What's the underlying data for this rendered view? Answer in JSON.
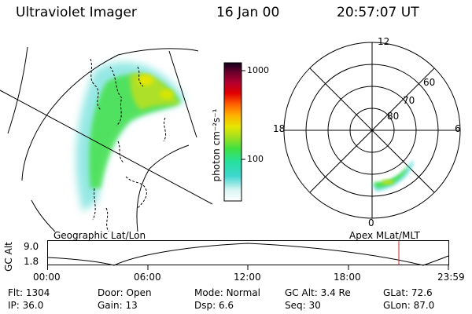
{
  "header": {
    "instrument": "Ultraviolet Imager",
    "date": "16 Jan 00",
    "time": "20:57:07 UT"
  },
  "left_panel": {
    "caption": "Geographic Lat/Lon"
  },
  "colorbar": {
    "label": "photon cm⁻²s⁻¹",
    "ticks": [
      "1000",
      "100"
    ],
    "scale": "log",
    "colors": [
      "#ffffff",
      "#d7f5f3",
      "#3fd6cf",
      "#25e0a0",
      "#40e040",
      "#9fe020",
      "#e6e600",
      "#ffb000",
      "#ff6000",
      "#e00000",
      "#b00030",
      "#60002a",
      "#10001a"
    ]
  },
  "polar_plot": {
    "caption": "Apex MLat/MLT",
    "mlt_labels": [
      "12",
      "18",
      "6",
      "0"
    ],
    "lat_labels": [
      "60",
      "70",
      "80"
    ]
  },
  "altitude_plot": {
    "ylabel": "GC Alt",
    "yticks": [
      "9.0",
      "1.8"
    ],
    "xticks": [
      "00:00",
      "06:00",
      "12:00",
      "18:00",
      "23:59"
    ],
    "marker_color": "#cc2222"
  },
  "info": {
    "row1": [
      {
        "label": "Flt:",
        "value": "1304"
      },
      {
        "label": "Door:",
        "value": "Open"
      },
      {
        "label": "Mode:",
        "value": "Normal"
      },
      {
        "label": "GC Alt:",
        "value": "3.4 Re"
      },
      {
        "label": "GLat:",
        "value": "72.6"
      }
    ],
    "row2": [
      {
        "label": "IP:",
        "value": "36.0"
      },
      {
        "label": "Gain:",
        "value": "13"
      },
      {
        "label": "Dsp:",
        "value": "6.6"
      },
      {
        "label": "Seq:",
        "value": "30"
      },
      {
        "label": "GLon:",
        "value": "87.0"
      }
    ]
  }
}
